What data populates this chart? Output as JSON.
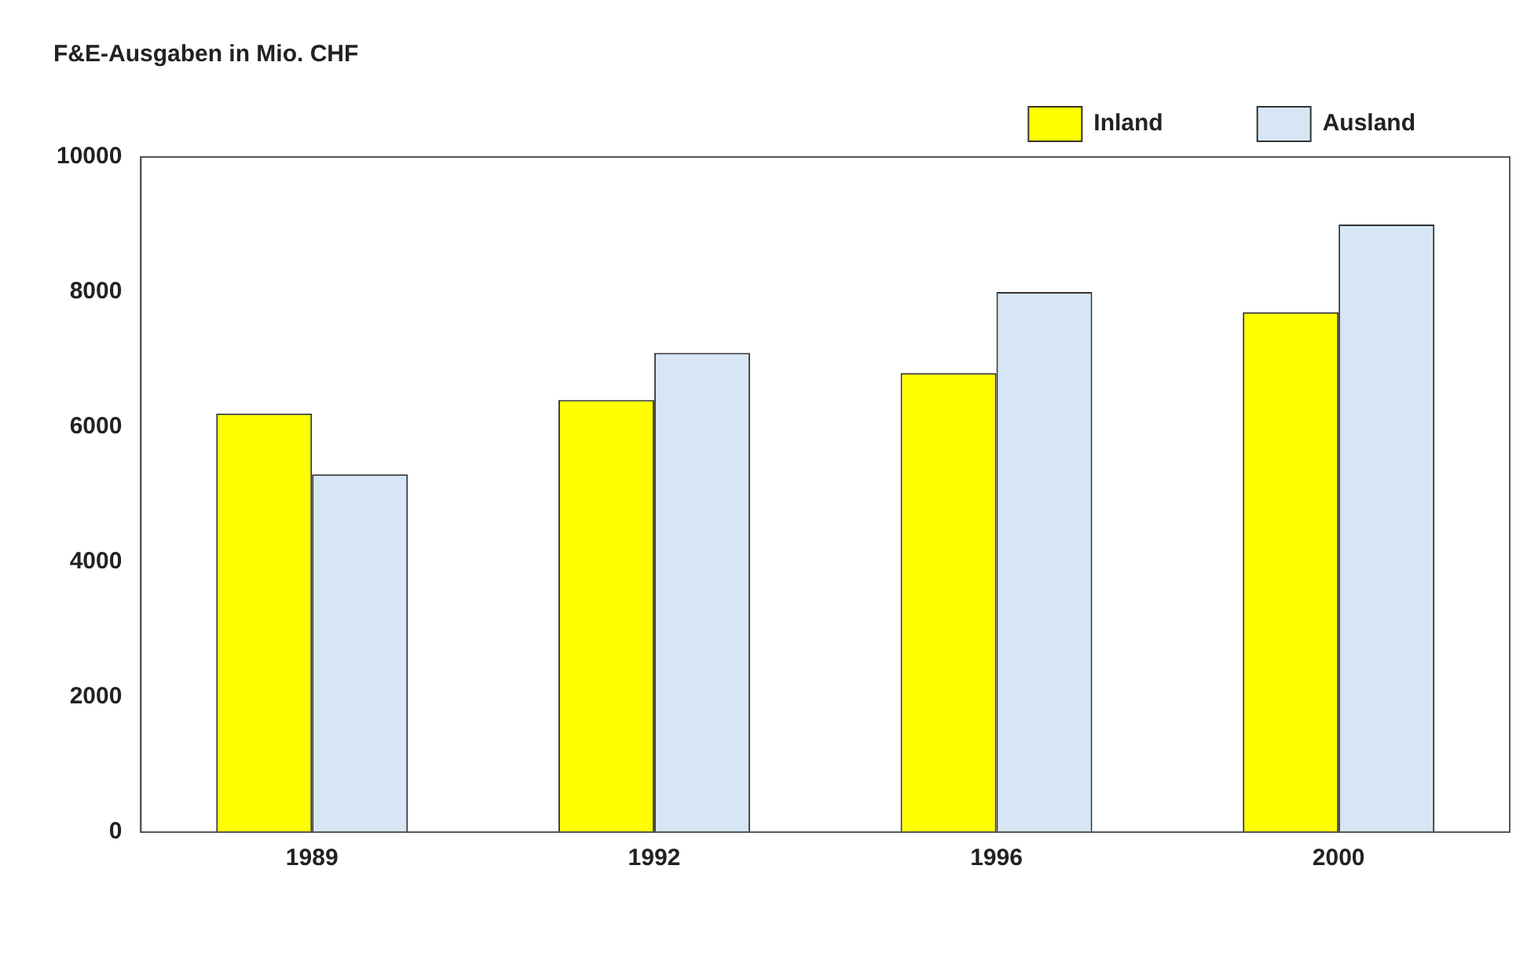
{
  "chart_data": {
    "type": "bar",
    "ylabel": "F&E-Ausgaben in Mio. CHF",
    "categories": [
      "1989",
      "1992",
      "1996",
      "2000"
    ],
    "series": [
      {
        "name": "Inland",
        "color": "#ffff00",
        "values": [
          6200,
          6400,
          6800,
          7700
        ]
      },
      {
        "name": "Ausland",
        "color": "#d6e6f4",
        "values": [
          5300,
          7100,
          8000,
          9000
        ]
      }
    ],
    "ylim": [
      0,
      10000
    ],
    "yticks": [
      0,
      2000,
      4000,
      6000,
      8000,
      10000
    ],
    "grid": false,
    "legend": "top right"
  }
}
